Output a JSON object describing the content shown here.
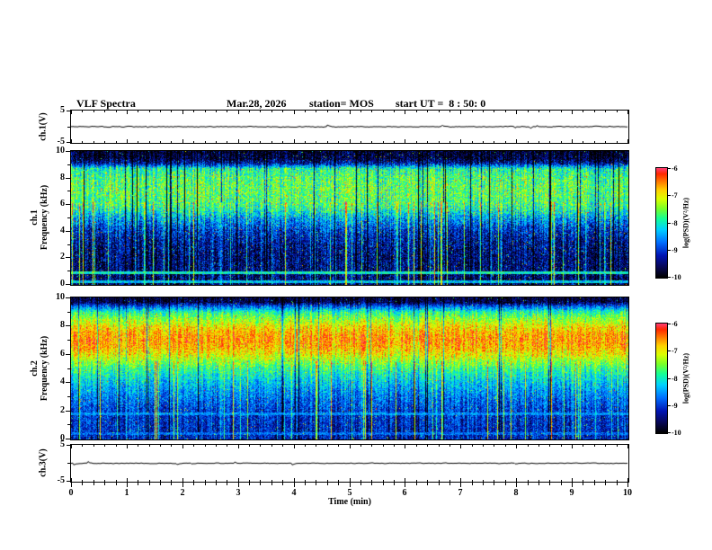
{
  "header": {
    "title": "VLF Spectra",
    "date": "Mar.28, 2026",
    "station": "station= MOS",
    "start_ut": "start UT =  8 : 50: 0"
  },
  "xaxis": {
    "label": "Time (min)",
    "min": 0,
    "max": 10,
    "tick_labels": [
      "0",
      "1",
      "2",
      "3",
      "4",
      "5",
      "6",
      "7",
      "8",
      "9",
      "10"
    ]
  },
  "panels": {
    "ch1v": {
      "label": "ch.1(V)",
      "ymin": -5,
      "ymax": 5,
      "tick_labels": [
        "5",
        "-5"
      ]
    },
    "spec1": {
      "label_line1": "ch.1",
      "label_line2": "Frequency (kHz)",
      "ymin": 0,
      "ymax": 10,
      "tick_labels": [
        "10",
        "8",
        "6",
        "4",
        "2",
        "0"
      ]
    },
    "spec2": {
      "label_line1": "ch.2",
      "label_line2": "Frequency (kHz)",
      "ymin": 0,
      "ymax": 10,
      "tick_labels": [
        "10",
        "8",
        "6",
        "4",
        "2",
        "0"
      ]
    },
    "ch3v": {
      "label": "ch.3(V)",
      "ymin": -5,
      "ymax": 5,
      "tick_labels": [
        "5",
        "-5"
      ]
    }
  },
  "colorbar": {
    "label": "log(PSD)(V²/Hz)",
    "tick_labels": [
      "-6",
      "-7",
      "-8",
      "-9",
      "-10"
    ],
    "max": -6,
    "min": -10
  },
  "colors": {
    "background": "#ffffff",
    "frame": "#000000",
    "colormap": "jet-with-black-floor"
  },
  "chart_data": [
    {
      "type": "line",
      "panel": "ch.1 voltage waveform",
      "xlabel": "Time (min)",
      "xlim": [
        0,
        10
      ],
      "ylabel": "ch.1(V)",
      "ylim": [
        -5,
        5
      ],
      "mean_V": 0,
      "noise_amp_V": 0.2,
      "description": "nearly flat trace at 0 V with small impulsive noise"
    },
    {
      "type": "heatmap",
      "panel": "ch.1 spectrogram",
      "xlabel": "Time (min)",
      "xlim": [
        0,
        10
      ],
      "ylabel": "Frequency (kHz)",
      "ylim": [
        0,
        10
      ],
      "zlabel": "log(PSD)(V²/Hz)",
      "zlim": [
        -10,
        -6
      ],
      "profile_kHz_logPSD": [
        [
          0,
          -9.6
        ],
        [
          1,
          -9.5
        ],
        [
          2,
          -9.5
        ],
        [
          3,
          -9.4
        ],
        [
          4,
          -9.1
        ],
        [
          5,
          -8.5
        ],
        [
          5.5,
          -8.05
        ],
        [
          6,
          -7.75
        ],
        [
          7,
          -7.6
        ],
        [
          8,
          -7.7
        ],
        [
          8.7,
          -7.95
        ],
        [
          9.1,
          -9.3
        ],
        [
          9.5,
          -9.8
        ],
        [
          10,
          -9.9
        ]
      ],
      "lines_kHz": [
        {
          "f": 0.9,
          "level": -8.0
        },
        {
          "f": 0.2,
          "level": -8.3
        }
      ],
      "noise_db": 0.65,
      "column_noise_db": 0.4,
      "streaks": {
        "prob": 0.1,
        "extra_db": 1.7,
        "fmax_kHz": 6.2
      },
      "gaps": {
        "prob": 0.06,
        "drop_db": 2.2
      },
      "salt_prob": 0.015,
      "salt_db": 1.8,
      "description": "dense green/cyan hiss band 5.5-9 kHz over dark background, vertical sferic streaks below 6 kHz, narrow line near 0.9 kHz, black above 9.3 kHz"
    },
    {
      "type": "heatmap",
      "panel": "ch.2 spectrogram",
      "xlabel": "Time (min)",
      "xlim": [
        0,
        10
      ],
      "ylabel": "Frequency (kHz)",
      "ylim": [
        0,
        10
      ],
      "zlabel": "log(PSD)(V²/Hz)",
      "zlim": [
        -10,
        -6
      ],
      "profile_kHz_logPSD": [
        [
          0,
          -9.2
        ],
        [
          1,
          -9.1
        ],
        [
          2,
          -9.0
        ],
        [
          3,
          -8.7
        ],
        [
          4,
          -8.3
        ],
        [
          5,
          -7.8
        ],
        [
          5.5,
          -7.4
        ],
        [
          6,
          -7.0
        ],
        [
          6.5,
          -6.7
        ],
        [
          7,
          -6.6
        ],
        [
          7.5,
          -6.7
        ],
        [
          8,
          -7.0
        ],
        [
          8.5,
          -7.4
        ],
        [
          9,
          -7.9
        ],
        [
          9.4,
          -8.8
        ],
        [
          9.7,
          -9.7
        ],
        [
          10,
          -9.8
        ]
      ],
      "lines_kHz": [
        {
          "f": 1.8,
          "level": -8.6
        },
        {
          "f": 0.4,
          "level": -8.8
        }
      ],
      "noise_db": 0.5,
      "column_noise_db": 0.35,
      "streaks": {
        "prob": 0.09,
        "extra_db": 1.5,
        "fmax_kHz": 5.5
      },
      "gaps": {
        "prob": 0.04,
        "drop_db": 1.2
      },
      "salt_prob": 0.012,
      "salt_db": 1.5,
      "description": "strong red/orange band 6-8 kHz flanked by yellow/green, blue background below 4 kHz with vertical green streaks, dark above 9.5 kHz"
    },
    {
      "type": "line",
      "panel": "ch.3 voltage waveform",
      "xlabel": "Time (min)",
      "xlim": [
        0,
        10
      ],
      "ylabel": "ch.3(V)",
      "ylim": [
        -5,
        5
      ],
      "mean_V": 0,
      "noise_amp_V": 0.15,
      "description": "nearly flat trace at 0 V"
    }
  ]
}
